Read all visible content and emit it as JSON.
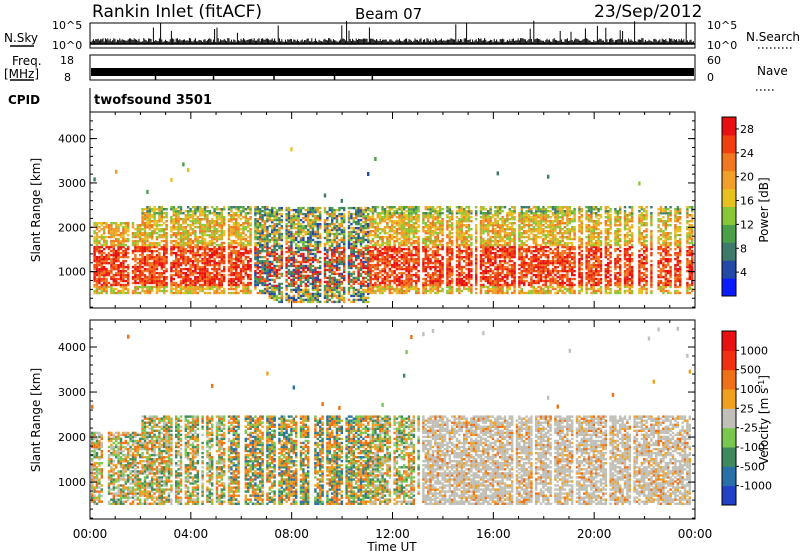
{
  "header": {
    "station": "Rankin Inlet (fitACF)",
    "beam": "Beam 07",
    "date": "23/Sep/2012"
  },
  "nsky_panel": {
    "left_label": "N.Sky",
    "left_ticks": [
      "10^5",
      "10^0"
    ],
    "right_label": "N.Search",
    "right_ticks": [
      "10^5",
      "10^0"
    ]
  },
  "freq_panel": {
    "left_label_1": "Freq.",
    "left_label_2": "[MHz]",
    "left_ticks": [
      "18",
      "8"
    ],
    "right_label": "Nave",
    "right_ticks": [
      "60",
      "0"
    ]
  },
  "cpid": {
    "label": "CPID",
    "program": "twofsound 3501"
  },
  "chart_data": [
    {
      "type": "heatmap",
      "title": "",
      "xlabel": "",
      "ylabel": "Slant Range [km]",
      "x_ticks": [
        "00:00",
        "04:00",
        "08:00",
        "12:00",
        "16:00",
        "20:00",
        "00:00"
      ],
      "y_ticks": [
        "1000",
        "2000",
        "3000",
        "4000"
      ],
      "xlim_hours": [
        0,
        24
      ],
      "ylim_km": [
        180,
        4600
      ],
      "colorbar": {
        "label": "Power [dB]",
        "ticks": [
          "4",
          "8",
          "12",
          "16",
          "20",
          "24",
          "28"
        ],
        "range": [
          0,
          30
        ],
        "colors": [
          "#0a1cff",
          "#244aa8",
          "#3c7a6a",
          "#4aa048",
          "#88c838",
          "#e8c020",
          "#f0a028",
          "#f07820",
          "#f04010",
          "#e81010"
        ]
      }
    },
    {
      "type": "heatmap",
      "title": "",
      "xlabel": "Time UT",
      "ylabel": "Slant Range [km]",
      "x_ticks": [
        "00:00",
        "04:00",
        "08:00",
        "12:00",
        "16:00",
        "20:00",
        "00:00"
      ],
      "y_ticks": [
        "1000",
        "2000",
        "3000",
        "4000"
      ],
      "xlim_hours": [
        0,
        24
      ],
      "ylim_km": [
        180,
        4600
      ],
      "colorbar": {
        "label_main": "Velocity  [m s",
        "label_sup": "-1",
        "label_end": "]",
        "ticks": [
          "1000",
          "500",
          "100",
          "25",
          "-25",
          "-100",
          "-500",
          "-1000"
        ],
        "colors": [
          "#2040c8",
          "#2a70a8",
          "#3e8a5e",
          "#78c850",
          "#c0c0b8",
          "#f0a020",
          "#f07018",
          "#f03010",
          "#e81010"
        ]
      }
    }
  ]
}
